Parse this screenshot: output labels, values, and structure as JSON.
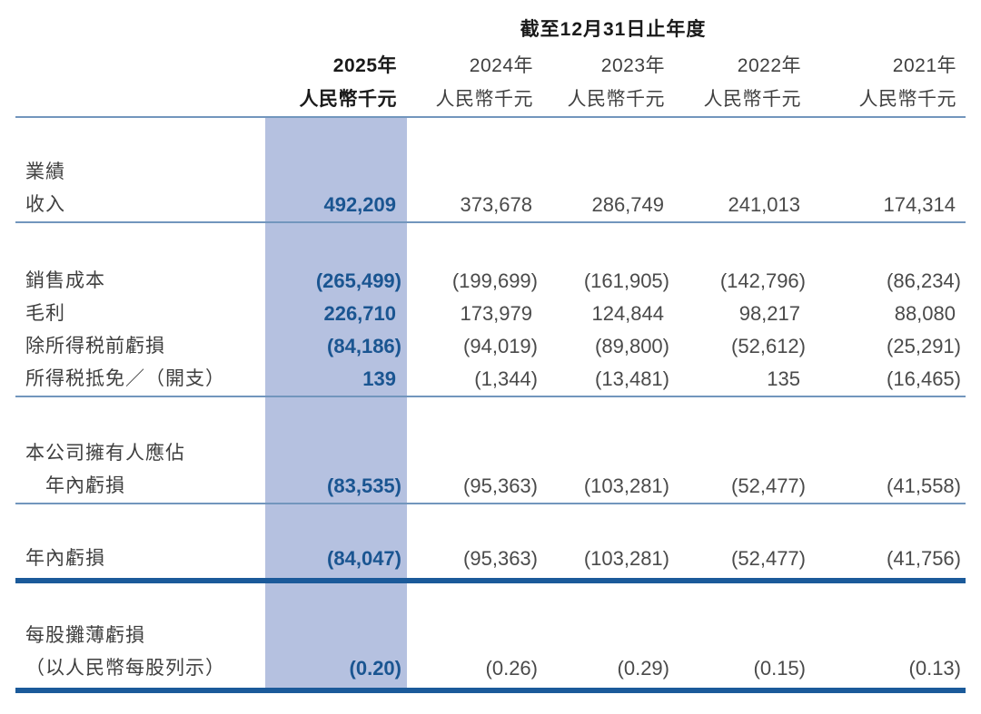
{
  "title": "截至12月31日止年度",
  "columns": [
    {
      "year": "2025年",
      "unit": "人民幣千元",
      "highlight": true
    },
    {
      "year": "2024年",
      "unit": "人民幣千元",
      "highlight": false
    },
    {
      "year": "2023年",
      "unit": "人民幣千元",
      "highlight": false
    },
    {
      "year": "2022年",
      "unit": "人民幣千元",
      "highlight": false
    },
    {
      "year": "2021年",
      "unit": "人民幣千元",
      "highlight": false
    }
  ],
  "sections": [
    {
      "rule": "thin",
      "rows": [
        {
          "label": "業績",
          "indent": false,
          "values": [
            "",
            "",
            "",
            "",
            ""
          ]
        },
        {
          "label": "收入",
          "indent": false,
          "values": [
            "492,209",
            "373,678",
            "286,749",
            "241,013",
            "174,314"
          ]
        }
      ]
    },
    {
      "rule": "thin",
      "rows": [
        {
          "label": "銷售成本",
          "indent": false,
          "values": [
            "(265,499)",
            "(199,699)",
            "(161,905)",
            "(142,796)",
            "(86,234)"
          ]
        },
        {
          "label": "毛利",
          "indent": false,
          "values": [
            "226,710",
            "173,979",
            "124,844",
            "98,217",
            "88,080"
          ]
        },
        {
          "label": "除所得税前虧損",
          "indent": false,
          "values": [
            "(84,186)",
            "(94,019)",
            "(89,800)",
            "(52,612)",
            "(25,291)"
          ]
        },
        {
          "label": "所得税抵免／（開支）",
          "indent": false,
          "values": [
            "139",
            "(1,344)",
            "(13,481)",
            "135",
            "(16,465)"
          ]
        }
      ]
    },
    {
      "rule": "thin",
      "rows": [
        {
          "label": "本公司擁有人應佔",
          "indent": false,
          "values": [
            "",
            "",
            "",
            "",
            ""
          ]
        },
        {
          "label": "年內虧損",
          "indent": true,
          "values": [
            "(83,535)",
            "(95,363)",
            "(103,281)",
            "(52,477)",
            "(41,558)"
          ]
        }
      ]
    },
    {
      "rule": "thick",
      "rows": [
        {
          "label": "年內虧損",
          "indent": false,
          "values": [
            "(84,047)",
            "(95,363)",
            "(103,281)",
            "(52,477)",
            "(41,756)"
          ]
        }
      ]
    },
    {
      "rule": "thick",
      "rows": [
        {
          "label": "每股攤薄虧損",
          "indent": false,
          "values": [
            "",
            "",
            "",
            "",
            ""
          ]
        },
        {
          "label": "（以人民幣每股列示）",
          "indent": false,
          "values": [
            "(0.20)",
            "(0.26)",
            "(0.29)",
            "(0.15)",
            "(0.13)"
          ]
        }
      ]
    }
  ],
  "colors": {
    "highlight_column": "#b5c1e0",
    "accent_text": "#1a5591",
    "thin_rule": "#7296bd",
    "thick_rule": "#1b5a9a",
    "label_text": "#3f3f3f",
    "value_text": "#4a4a4a",
    "header_bold_text": "#1a1a1a"
  }
}
